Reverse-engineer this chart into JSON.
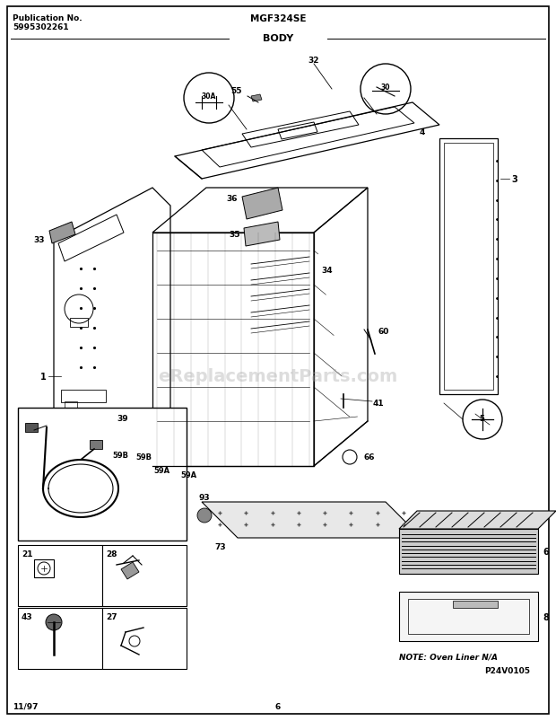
{
  "title_left_line1": "Publication No.",
  "title_left_line2": "5995302261",
  "title_center": "MGF324SE",
  "title_body": "BODY",
  "footer_left": "11/97",
  "footer_center": "6",
  "note_text": "NOTE: Oven Liner N/A",
  "p24_text": "P24V0105",
  "watermark_text": "eReplacementParts.com",
  "bg_color": "#ffffff",
  "fig_width": 6.2,
  "fig_height": 8.04,
  "dpi": 100
}
